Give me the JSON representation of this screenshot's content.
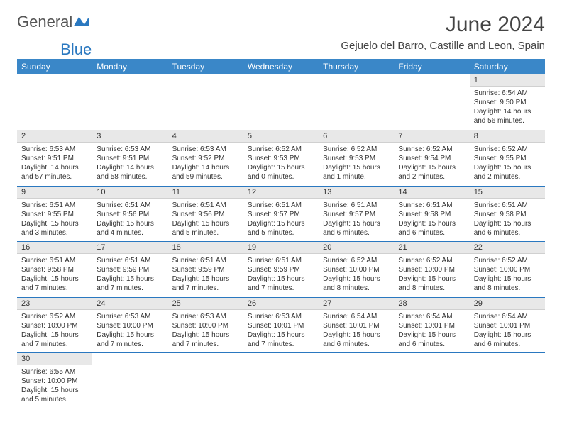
{
  "logo": {
    "general": "General",
    "blue": "Blue"
  },
  "title": "June 2024",
  "location": "Gejuelo del Barro, Castille and Leon, Spain",
  "colors": {
    "header_bg": "#3a87c8",
    "header_text": "#ffffff",
    "daynum_bg": "#e8e8e8",
    "week_sep": "#2a78c0",
    "logo_accent": "#2a78c0",
    "body_text": "#333333"
  },
  "day_headers": [
    "Sunday",
    "Monday",
    "Tuesday",
    "Wednesday",
    "Thursday",
    "Friday",
    "Saturday"
  ],
  "weeks": [
    [
      null,
      null,
      null,
      null,
      null,
      null,
      {
        "n": "1",
        "sr": "Sunrise: 6:54 AM",
        "ss": "Sunset: 9:50 PM",
        "dl": "Daylight: 14 hours and 56 minutes."
      }
    ],
    [
      {
        "n": "2",
        "sr": "Sunrise: 6:53 AM",
        "ss": "Sunset: 9:51 PM",
        "dl": "Daylight: 14 hours and 57 minutes."
      },
      {
        "n": "3",
        "sr": "Sunrise: 6:53 AM",
        "ss": "Sunset: 9:51 PM",
        "dl": "Daylight: 14 hours and 58 minutes."
      },
      {
        "n": "4",
        "sr": "Sunrise: 6:53 AM",
        "ss": "Sunset: 9:52 PM",
        "dl": "Daylight: 14 hours and 59 minutes."
      },
      {
        "n": "5",
        "sr": "Sunrise: 6:52 AM",
        "ss": "Sunset: 9:53 PM",
        "dl": "Daylight: 15 hours and 0 minutes."
      },
      {
        "n": "6",
        "sr": "Sunrise: 6:52 AM",
        "ss": "Sunset: 9:53 PM",
        "dl": "Daylight: 15 hours and 1 minute."
      },
      {
        "n": "7",
        "sr": "Sunrise: 6:52 AM",
        "ss": "Sunset: 9:54 PM",
        "dl": "Daylight: 15 hours and 2 minutes."
      },
      {
        "n": "8",
        "sr": "Sunrise: 6:52 AM",
        "ss": "Sunset: 9:55 PM",
        "dl": "Daylight: 15 hours and 2 minutes."
      }
    ],
    [
      {
        "n": "9",
        "sr": "Sunrise: 6:51 AM",
        "ss": "Sunset: 9:55 PM",
        "dl": "Daylight: 15 hours and 3 minutes."
      },
      {
        "n": "10",
        "sr": "Sunrise: 6:51 AM",
        "ss": "Sunset: 9:56 PM",
        "dl": "Daylight: 15 hours and 4 minutes."
      },
      {
        "n": "11",
        "sr": "Sunrise: 6:51 AM",
        "ss": "Sunset: 9:56 PM",
        "dl": "Daylight: 15 hours and 5 minutes."
      },
      {
        "n": "12",
        "sr": "Sunrise: 6:51 AM",
        "ss": "Sunset: 9:57 PM",
        "dl": "Daylight: 15 hours and 5 minutes."
      },
      {
        "n": "13",
        "sr": "Sunrise: 6:51 AM",
        "ss": "Sunset: 9:57 PM",
        "dl": "Daylight: 15 hours and 6 minutes."
      },
      {
        "n": "14",
        "sr": "Sunrise: 6:51 AM",
        "ss": "Sunset: 9:58 PM",
        "dl": "Daylight: 15 hours and 6 minutes."
      },
      {
        "n": "15",
        "sr": "Sunrise: 6:51 AM",
        "ss": "Sunset: 9:58 PM",
        "dl": "Daylight: 15 hours and 6 minutes."
      }
    ],
    [
      {
        "n": "16",
        "sr": "Sunrise: 6:51 AM",
        "ss": "Sunset: 9:58 PM",
        "dl": "Daylight: 15 hours and 7 minutes."
      },
      {
        "n": "17",
        "sr": "Sunrise: 6:51 AM",
        "ss": "Sunset: 9:59 PM",
        "dl": "Daylight: 15 hours and 7 minutes."
      },
      {
        "n": "18",
        "sr": "Sunrise: 6:51 AM",
        "ss": "Sunset: 9:59 PM",
        "dl": "Daylight: 15 hours and 7 minutes."
      },
      {
        "n": "19",
        "sr": "Sunrise: 6:51 AM",
        "ss": "Sunset: 9:59 PM",
        "dl": "Daylight: 15 hours and 7 minutes."
      },
      {
        "n": "20",
        "sr": "Sunrise: 6:52 AM",
        "ss": "Sunset: 10:00 PM",
        "dl": "Daylight: 15 hours and 8 minutes."
      },
      {
        "n": "21",
        "sr": "Sunrise: 6:52 AM",
        "ss": "Sunset: 10:00 PM",
        "dl": "Daylight: 15 hours and 8 minutes."
      },
      {
        "n": "22",
        "sr": "Sunrise: 6:52 AM",
        "ss": "Sunset: 10:00 PM",
        "dl": "Daylight: 15 hours and 8 minutes."
      }
    ],
    [
      {
        "n": "23",
        "sr": "Sunrise: 6:52 AM",
        "ss": "Sunset: 10:00 PM",
        "dl": "Daylight: 15 hours and 7 minutes."
      },
      {
        "n": "24",
        "sr": "Sunrise: 6:53 AM",
        "ss": "Sunset: 10:00 PM",
        "dl": "Daylight: 15 hours and 7 minutes."
      },
      {
        "n": "25",
        "sr": "Sunrise: 6:53 AM",
        "ss": "Sunset: 10:00 PM",
        "dl": "Daylight: 15 hours and 7 minutes."
      },
      {
        "n": "26",
        "sr": "Sunrise: 6:53 AM",
        "ss": "Sunset: 10:01 PM",
        "dl": "Daylight: 15 hours and 7 minutes."
      },
      {
        "n": "27",
        "sr": "Sunrise: 6:54 AM",
        "ss": "Sunset: 10:01 PM",
        "dl": "Daylight: 15 hours and 6 minutes."
      },
      {
        "n": "28",
        "sr": "Sunrise: 6:54 AM",
        "ss": "Sunset: 10:01 PM",
        "dl": "Daylight: 15 hours and 6 minutes."
      },
      {
        "n": "29",
        "sr": "Sunrise: 6:54 AM",
        "ss": "Sunset: 10:01 PM",
        "dl": "Daylight: 15 hours and 6 minutes."
      }
    ],
    [
      {
        "n": "30",
        "sr": "Sunrise: 6:55 AM",
        "ss": "Sunset: 10:00 PM",
        "dl": "Daylight: 15 hours and 5 minutes."
      },
      null,
      null,
      null,
      null,
      null,
      null
    ]
  ]
}
